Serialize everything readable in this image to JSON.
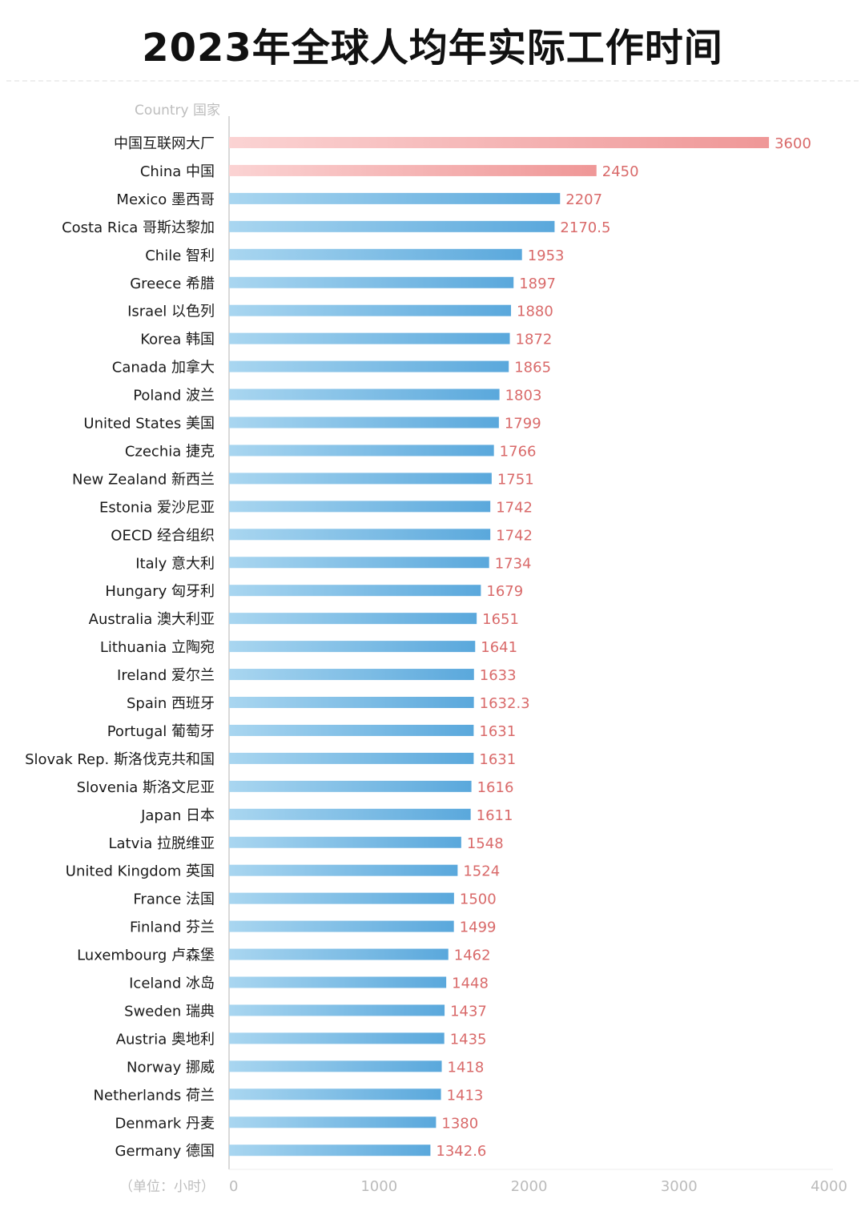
{
  "title": "2023年全球人均年实际工作时间",
  "chart_data": {
    "type": "bar",
    "orientation": "horizontal",
    "title": "2023年全球人均年实际工作时间",
    "ylabel": "Country 国家",
    "xlabel": "（单位：小时）",
    "xlim": [
      0,
      4000
    ],
    "xticks": [
      0,
      1000,
      2000,
      3000,
      4000
    ],
    "grid": false,
    "highlight_color": "#f4a3a3",
    "bar_color": "#6fb6e2",
    "value_label_color": "#d96a6a",
    "categories": [
      "中国互联网大厂",
      "China 中国",
      "Mexico 墨西哥",
      "Costa Rica 哥斯达黎加",
      "Chile 智利",
      "Greece 希腊",
      "Israel 以色列",
      "Korea 韩国",
      "Canada 加拿大",
      "Poland 波兰",
      "United States 美国",
      "Czechia 捷克",
      "New Zealand 新西兰",
      "Estonia 爱沙尼亚",
      "OECD 经合组织",
      "Italy 意大利",
      "Hungary 匈牙利",
      "Australia 澳大利亚",
      "Lithuania 立陶宛",
      "Ireland 爱尔兰",
      "Spain 西班牙",
      "Portugal 葡萄牙",
      "Slovak Rep. 斯洛伐克共和国",
      "Slovenia 斯洛文尼亚",
      "Japan 日本",
      "Latvia 拉脱维亚",
      "United Kingdom 英国",
      "France 法国",
      "Finland 芬兰",
      "Luxembourg 卢森堡",
      "Iceland 冰岛",
      "Sweden 瑞典",
      "Austria 奥地利",
      "Norway 挪威",
      "Netherlands 荷兰",
      "Denmark 丹麦",
      "Germany 德国"
    ],
    "values": [
      3600,
      2450,
      2207,
      2170.5,
      1953,
      1897,
      1880,
      1872,
      1865,
      1803,
      1799,
      1766,
      1751,
      1742,
      1742,
      1734,
      1679,
      1651,
      1641,
      1633,
      1632.3,
      1631,
      1631,
      1616,
      1611,
      1548,
      1524,
      1500,
      1499,
      1462,
      1448,
      1437,
      1435,
      1418,
      1413,
      1380,
      1342.6
    ],
    "value_labels": [
      "3600",
      "2450",
      "2207",
      "2170.5",
      "1953",
      "1897",
      "1880",
      "1872",
      "1865",
      "1803",
      "1799",
      "1766",
      "1751",
      "1742",
      "1742",
      "1734",
      "1679",
      "1651",
      "1641",
      "1633",
      "1632.3",
      "1631",
      "1631",
      "1616",
      "1611",
      "1548",
      "1524",
      "1500",
      "1499",
      "1462",
      "1448",
      "1437",
      "1435",
      "1418",
      "1413",
      "1380",
      "1342.6"
    ],
    "highlighted": [
      true,
      true,
      false,
      false,
      false,
      false,
      false,
      false,
      false,
      false,
      false,
      false,
      false,
      false,
      false,
      false,
      false,
      false,
      false,
      false,
      false,
      false,
      false,
      false,
      false,
      false,
      false,
      false,
      false,
      false,
      false,
      false,
      false,
      false,
      false,
      false,
      false
    ]
  }
}
